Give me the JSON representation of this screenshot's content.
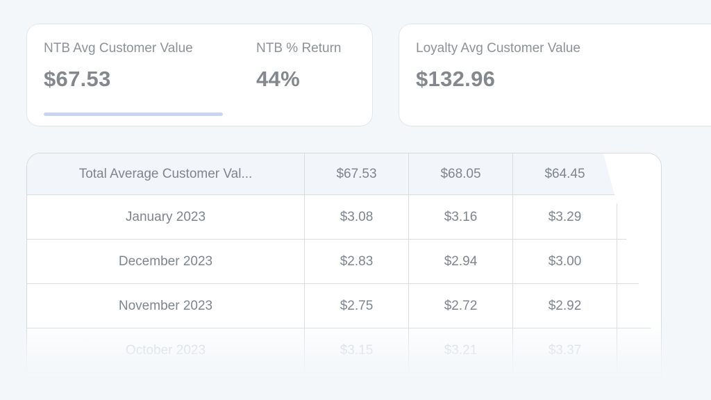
{
  "page": {
    "background_color": "#f3f7f9",
    "accent_underline_color": "#c9d5f3"
  },
  "cards": {
    "ntb": {
      "stats": [
        {
          "label": "NTB Avg Customer Value",
          "value": "$67.53",
          "active": true
        },
        {
          "label": "NTB % Return",
          "value": "44%",
          "active": false
        }
      ]
    },
    "loyalty": {
      "label": "Loyalty Avg Customer Value",
      "value": "$132.96"
    }
  },
  "table": {
    "header": {
      "label": "Total Average Customer Val...",
      "values": [
        "$67.53",
        "$68.05",
        "$64.45"
      ]
    },
    "rows": [
      {
        "label": "January 2023",
        "values": [
          "$3.08",
          "$3.16",
          "$3.29"
        ]
      },
      {
        "label": "December 2023",
        "values": [
          "$2.83",
          "$2.94",
          "$3.00"
        ]
      },
      {
        "label": "November 2023",
        "values": [
          "$2.75",
          "$2.72",
          "$2.92"
        ]
      },
      {
        "label": "October 2023",
        "values": [
          "$3.15",
          "$3.21",
          "$3.37"
        ]
      }
    ]
  }
}
